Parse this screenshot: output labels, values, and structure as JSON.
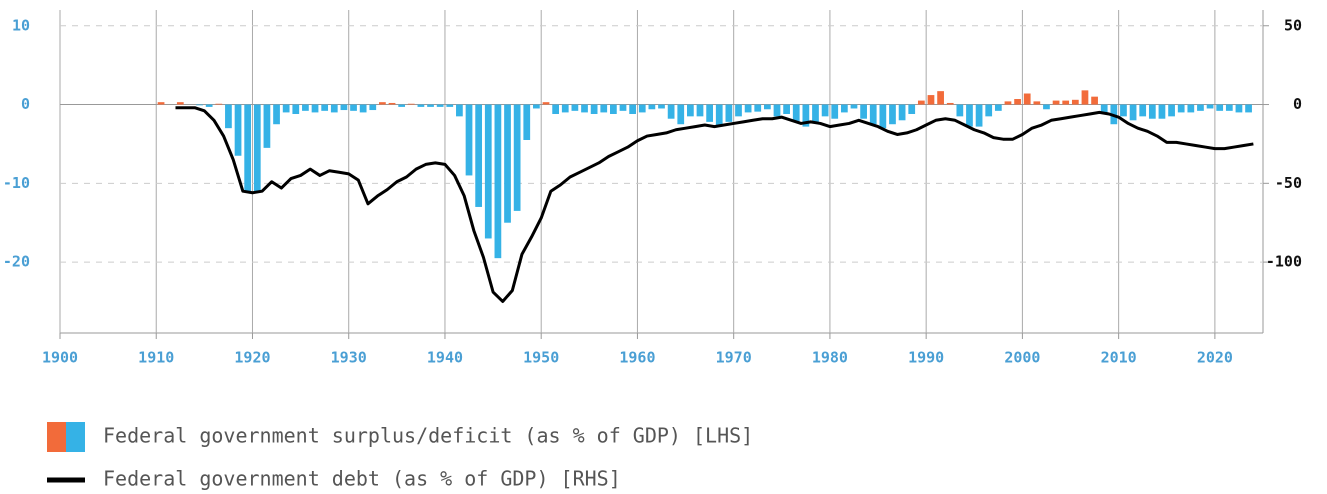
{
  "chart_data": {
    "type": "bar",
    "xlim": [
      1900,
      2025
    ],
    "xticks": [
      1900,
      1910,
      1920,
      1930,
      1940,
      1950,
      1960,
      1970,
      1980,
      1990,
      2000,
      2010,
      2020
    ],
    "ylim": [
      -29,
      12
    ],
    "yticks": [
      -20,
      -10,
      0,
      10
    ],
    "y2lim": [
      -145,
      60
    ],
    "y2ticks": [
      -100,
      -50,
      0,
      50
    ],
    "grid": true,
    "series": [
      {
        "name": "Federal government surplus/deficit (as % of GDP) [LHS]",
        "type": "bar",
        "color": "#35b2e6",
        "positive_color": "#f26b3a",
        "x": [
          1910,
          1911,
          1912,
          1913,
          1914,
          1915,
          1916,
          1917,
          1918,
          1919,
          1920,
          1921,
          1922,
          1923,
          1924,
          1925,
          1926,
          1927,
          1928,
          1929,
          1930,
          1931,
          1932,
          1933,
          1934,
          1935,
          1936,
          1937,
          1938,
          1939,
          1940,
          1941,
          1942,
          1943,
          1944,
          1945,
          1946,
          1947,
          1948,
          1949,
          1950,
          1951,
          1952,
          1953,
          1954,
          1955,
          1956,
          1957,
          1958,
          1959,
          1960,
          1961,
          1962,
          1963,
          1964,
          1965,
          1966,
          1967,
          1968,
          1969,
          1970,
          1971,
          1972,
          1973,
          1974,
          1975,
          1976,
          1977,
          1978,
          1979,
          1980,
          1981,
          1982,
          1983,
          1984,
          1985,
          1986,
          1987,
          1988,
          1989,
          1990,
          1991,
          1992,
          1993,
          1994,
          1995,
          1996,
          1997,
          1998,
          1999,
          2000,
          2001,
          2002,
          2003,
          2004,
          2005,
          2006,
          2007,
          2008,
          2009,
          2010,
          2011,
          2012,
          2013,
          2014,
          2015,
          2016,
          2017,
          2018,
          2019,
          2020,
          2021,
          2022,
          2023
        ],
        "values": [
          0.3,
          0,
          0.3,
          0,
          -0.1,
          -0.3,
          0.1,
          -3,
          -6.5,
          -11,
          -11,
          -5.5,
          -2.5,
          -1,
          -1.2,
          -0.8,
          -1,
          -0.8,
          -1,
          -0.7,
          -0.8,
          -1,
          -0.7,
          0.3,
          0.2,
          -0.3,
          0.1,
          -0.3,
          -0.3,
          -0.3,
          -0.3,
          -1.5,
          -9,
          -13,
          -17,
          -19.5,
          -15,
          -13.5,
          -4.5,
          -0.5,
          0.3,
          -1.2,
          -1,
          -0.8,
          -1,
          -1.2,
          -1,
          -1.2,
          -0.8,
          -1.2,
          -1,
          -0.6,
          -0.5,
          -1.8,
          -2.5,
          -1.5,
          -1.5,
          -2.2,
          -2.8,
          -2.2,
          -1.5,
          -1,
          -0.9,
          -0.6,
          -1.5,
          -1.2,
          -2.2,
          -2.8,
          -2.2,
          -1.5,
          -1.8,
          -1,
          -0.5,
          -1.8,
          -2.5,
          -3,
          -2.5,
          -2,
          -1.2,
          0.5,
          1.2,
          1.7,
          0.2,
          -1.5,
          -2.8,
          -2.8,
          -1.5,
          -0.8,
          0.4,
          0.7,
          1.4,
          0.4,
          -0.6,
          0.5,
          0.5,
          0.6,
          1.8,
          1,
          -1.2,
          -2.5,
          -1.5,
          -2,
          -1.5,
          -1.8,
          -1.8,
          -1.5,
          -1,
          -1,
          -0.8,
          -0.5,
          -0.8,
          -0.8,
          -1,
          -1
        ]
      },
      {
        "name": "Federal government debt (as % of GDP) [RHS]",
        "type": "line",
        "axis": "y2",
        "color": "#000000",
        "x": [
          1912,
          1913,
          1914,
          1915,
          1916,
          1917,
          1918,
          1919,
          1920,
          1921,
          1922,
          1923,
          1924,
          1925,
          1926,
          1927,
          1928,
          1929,
          1930,
          1931,
          1932,
          1933,
          1934,
          1935,
          1936,
          1937,
          1938,
          1939,
          1940,
          1941,
          1942,
          1943,
          1944,
          1945,
          1946,
          1947,
          1948,
          1949,
          1950,
          1951,
          1952,
          1953,
          1954,
          1955,
          1956,
          1957,
          1958,
          1959,
          1960,
          1961,
          1962,
          1963,
          1964,
          1965,
          1966,
          1967,
          1968,
          1969,
          1970,
          1971,
          1972,
          1973,
          1974,
          1975,
          1976,
          1977,
          1978,
          1979,
          1980,
          1981,
          1982,
          1983,
          1984,
          1985,
          1986,
          1987,
          1988,
          1989,
          1990,
          1991,
          1992,
          1993,
          1994,
          1995,
          1996,
          1997,
          1998,
          1999,
          2000,
          2001,
          2002,
          2003,
          2004,
          2005,
          2006,
          2007,
          2008,
          2009,
          2010,
          2011,
          2012,
          2013,
          2014,
          2015,
          2016,
          2017,
          2018,
          2019,
          2020,
          2021,
          2022,
          2023,
          2024
        ],
        "values": [
          -2,
          -2,
          -2,
          -4,
          -10,
          -20,
          -35,
          -55,
          -56,
          -55,
          -49,
          -53,
          -47,
          -45,
          -41,
          -45,
          -42,
          -43,
          -44,
          -48,
          -63,
          -58,
          -54,
          -49,
          -46,
          -41,
          -38,
          -37,
          -38,
          -45,
          -58,
          -80,
          -97,
          -119,
          -125,
          -118,
          -95,
          -84,
          -72,
          -55,
          -51,
          -46,
          -43,
          -40,
          -37,
          -33,
          -30,
          -27,
          -23,
          -20,
          -19,
          -18,
          -16,
          -15,
          -14,
          -13,
          -14,
          -13,
          -12,
          -11,
          -10,
          -9,
          -9,
          -8,
          -10,
          -12,
          -11,
          -12,
          -14,
          -13,
          -12,
          -10,
          -12,
          -14,
          -17,
          -19,
          -18,
          -16,
          -13,
          -10,
          -9,
          -10,
          -13,
          -16,
          -18,
          -21,
          -22,
          -22,
          -19,
          -15,
          -13,
          -10,
          -9,
          -8,
          -7,
          -6,
          -5,
          -6,
          -8,
          -12,
          -15,
          -17,
          -20,
          -24,
          -24,
          -25,
          -26,
          -27,
          -28,
          -28,
          -27,
          -26,
          -25
        ]
      }
    ]
  }
}
